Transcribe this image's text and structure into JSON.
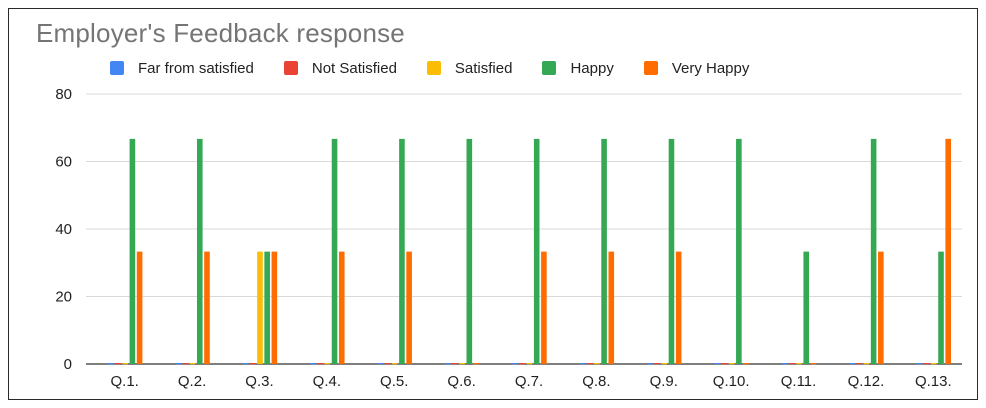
{
  "chart_data": {
    "type": "bar",
    "title": "Employer's Feedback response",
    "xlabel": "",
    "ylabel": "",
    "ylim": [
      0,
      80
    ],
    "yticks": [
      0,
      20,
      40,
      60,
      80
    ],
    "grid": true,
    "legend_position": "top",
    "categories": [
      "Q.1.",
      "Q.2.",
      "Q.3.",
      "Q.4.",
      "Q.5.",
      "Q.6.",
      "Q.7.",
      "Q.8.",
      "Q.9.",
      "Q.10.",
      "Q.11.",
      "Q.12.",
      "Q.13."
    ],
    "series": [
      {
        "name": "Far from satisfied",
        "color": "#4285f4",
        "values": [
          0,
          0,
          0,
          0,
          0,
          0,
          0,
          0,
          0,
          0,
          0,
          0,
          0
        ]
      },
      {
        "name": "Not Satisfied",
        "color": "#ea4335",
        "values": [
          0,
          0,
          0,
          0,
          0,
          0,
          0,
          0,
          0,
          0,
          0,
          0,
          0
        ]
      },
      {
        "name": "Satisfied",
        "color": "#fbbc04",
        "values": [
          0,
          0,
          33.3,
          0,
          0,
          0,
          0,
          0,
          0,
          0,
          0,
          0,
          0
        ]
      },
      {
        "name": "Happy",
        "color": "#34a853",
        "values": [
          66.7,
          66.7,
          33.3,
          66.7,
          66.7,
          66.7,
          66.7,
          66.7,
          66.7,
          66.7,
          33.3,
          66.7,
          33.3
        ]
      },
      {
        "name": "Very Happy",
        "color": "#ff6d01",
        "values": [
          33.3,
          33.3,
          33.3,
          33.3,
          33.3,
          0,
          33.3,
          33.3,
          33.3,
          0,
          0,
          33.3,
          66.7
        ]
      }
    ]
  }
}
